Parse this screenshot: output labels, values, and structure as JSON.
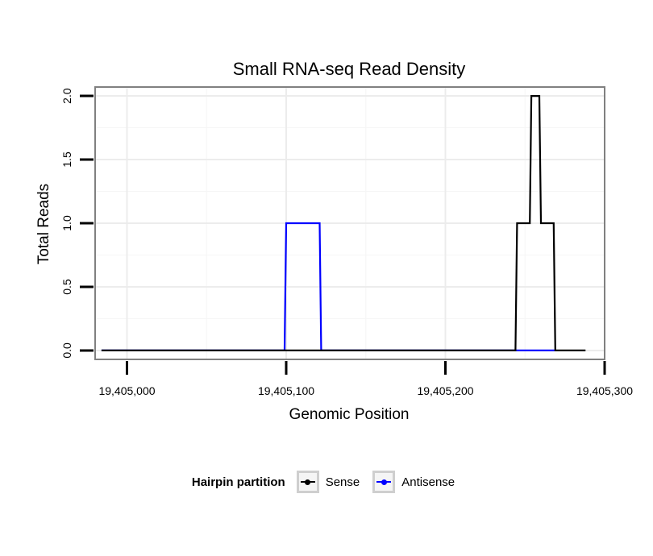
{
  "chart_data": {
    "type": "line",
    "title": "Small RNA-seq Read Density",
    "xlabel": "Genomic Position",
    "ylabel": "Total Reads",
    "xlim": [
      19404980,
      19405300
    ],
    "ylim": [
      -0.07,
      2.07
    ],
    "xticks": [
      19405000,
      19405100,
      19405200,
      19405300
    ],
    "xtick_labels": [
      "19,405,000",
      "19,405,100",
      "19,405,200",
      "19,405,300"
    ],
    "yticks": [
      0,
      0.5,
      1,
      1.5,
      2
    ],
    "ytick_labels": [
      "0.0",
      "0.5",
      "1.0",
      "1.5",
      "2.0"
    ],
    "grid": true,
    "legend": {
      "title": "Hairpin partition",
      "position": "bottom",
      "entries": [
        {
          "name": "Sense",
          "color": "#000000"
        },
        {
          "name": "Antisense",
          "color": "#0000ff"
        }
      ]
    },
    "series": [
      {
        "name": "Sense",
        "color": "#000000",
        "x": [
          19404984,
          19405244,
          19405245,
          19405253,
          19405254,
          19405259,
          19405260,
          19405268,
          19405269,
          19405288
        ],
        "y": [
          0,
          0,
          1,
          1,
          2,
          2,
          1,
          1,
          0,
          0
        ]
      },
      {
        "name": "Antisense",
        "color": "#0000ff",
        "x": [
          19404984,
          19405099,
          19405100,
          19405121,
          19405122,
          19405244,
          19405269
        ],
        "y": [
          0,
          0,
          1,
          1,
          0,
          0,
          0
        ]
      }
    ]
  }
}
